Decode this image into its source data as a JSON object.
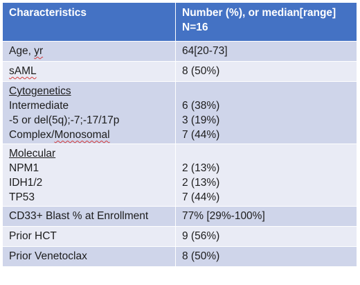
{
  "header": {
    "col1": "Characteristics",
    "col2_line1": "Number (%), or median[range]",
    "col2_line2": "N=16"
  },
  "rows": [
    {
      "label_a": "Age, ",
      "label_b": "yr",
      "value": "64[20-73]"
    },
    {
      "label": "sAML",
      "value": "8 (50%)"
    },
    {
      "heading": "Cytogenetics",
      "items": [
        {
          "label": "Intermediate",
          "value": "6 (38%)"
        },
        {
          "label": "-5 or del(5q);-7;-17/17p",
          "value": "3 (19%)"
        },
        {
          "label_a": "Complex/",
          "label_b": "Monosomal",
          "value": "7 (44%)"
        }
      ]
    },
    {
      "heading": "Molecular",
      "items": [
        {
          "label": "NPM1",
          "value": "2 (13%)"
        },
        {
          "label": "IDH1/2",
          "value": "2 (13%)"
        },
        {
          "label": "TP53",
          "value": "7 (44%)"
        }
      ]
    },
    {
      "label": "CD33+ Blast % at Enrollment",
      "value": "77% [29%-100%]"
    },
    {
      "label": "Prior HCT",
      "value": "9 (56%)"
    },
    {
      "label": "Prior Venetoclax",
      "value": "8 (50%)"
    }
  ]
}
